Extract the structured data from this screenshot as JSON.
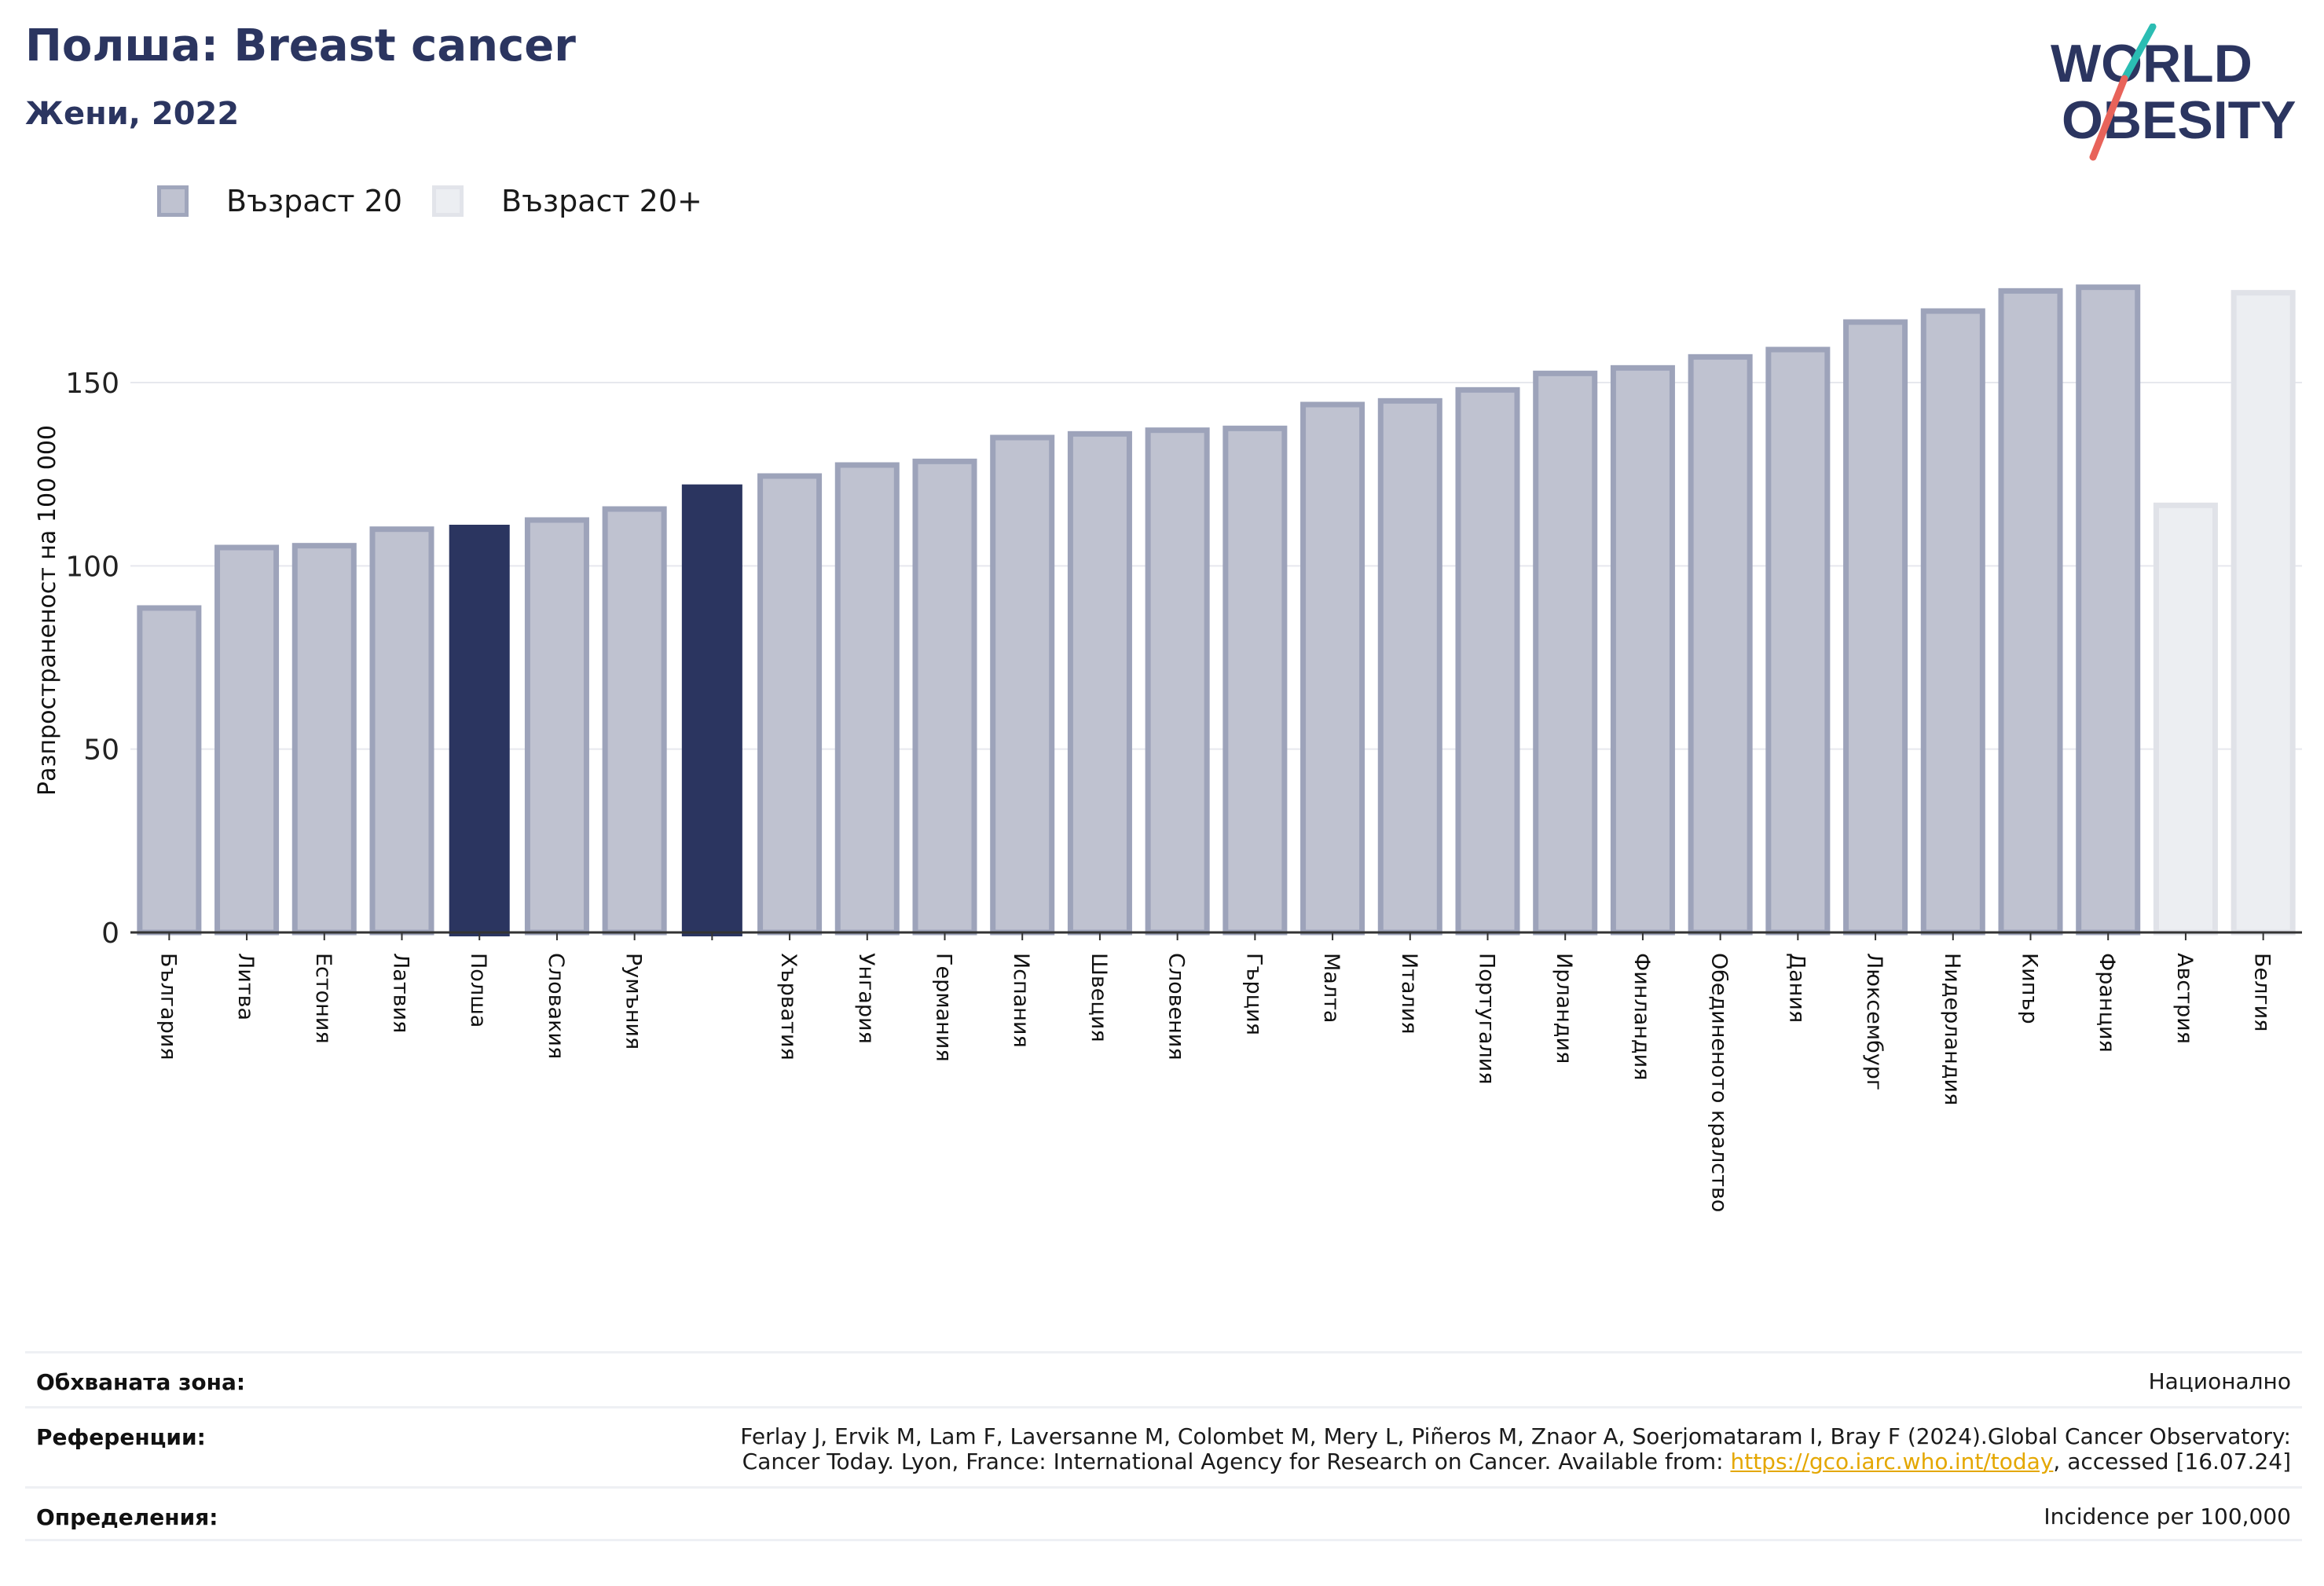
{
  "header": {
    "title": "Полша: Breast cancer",
    "subtitle": "Жени, 2022"
  },
  "logo": {
    "line1": "WORLD",
    "line2": "OBESITY"
  },
  "legend": [
    {
      "label": "Възраст 20",
      "fill": "#bfc2d0",
      "stroke": "#a0a6bc"
    },
    {
      "label": "Възраст 20+",
      "fill": "#eceef2",
      "stroke": "#e2e4ea"
    }
  ],
  "colors": {
    "highlight": "#2b3560",
    "bar_fill": "#bfc2d0",
    "bar_stroke": "#9da3ba",
    "bar_fill_light": "#eceef2",
    "bar_stroke_light": "#e0e2e8",
    "grid": "#e6e8ee",
    "axis": "#333333"
  },
  "chart_data": {
    "type": "bar",
    "ylabel": "Разпространеност  на 100 000",
    "ylim": [
      0,
      180
    ],
    "yticks": [
      0,
      50,
      100,
      150
    ],
    "grid": true,
    "categories": [
      "България",
      "Литва",
      "Естония",
      "Латвия",
      "Полша",
      "Словакия",
      "Румъния",
      "",
      "Хърватия",
      "Унгария",
      "Германия",
      "Испания",
      "Швеция",
      "Словения",
      "Гърция",
      "Малта",
      "Италия",
      "Португалия",
      "Ирландия",
      "Финландия",
      "Обединеното кралство",
      "Дания",
      "Люксембург",
      "Нидерландия",
      "Кипър",
      "Франция",
      "Австрия",
      "Белгия"
    ],
    "values": [
      88.5,
      105,
      105.5,
      110,
      111,
      112.5,
      115.5,
      122,
      124.5,
      127.5,
      128.5,
      135,
      136,
      137,
      137.5,
      144,
      145,
      148,
      152.5,
      154,
      157,
      159,
      166.5,
      169.5,
      175,
      176,
      116.5,
      174.5
    ],
    "series_group": [
      "20",
      "20",
      "20",
      "20",
      "highlight",
      "20",
      "20",
      "highlight",
      "20",
      "20",
      "20",
      "20",
      "20",
      "20",
      "20",
      "20",
      "20",
      "20",
      "20",
      "20",
      "20",
      "20",
      "20",
      "20",
      "20",
      "20",
      "20+",
      "20+"
    ]
  },
  "info": {
    "coverage_label": "Обхваната зона:",
    "coverage_value": "Национално",
    "references_label": "Референции:",
    "references_line1": "Ferlay J, Ervik M, Lam F, Laversanne M, Colombet M, Mery L, Piñeros M, Znaor A, Soerjomataram I, Bray F (2024).Global Cancer Observatory:",
    "references_line2_pre": "Cancer Today. Lyon, France: International Agency for Research on Cancer. Available from: ",
    "references_link": "https://gco.iarc.who.int/today",
    "references_line2_post": ", accessed [16.07.24]",
    "definitions_label": "Определения:",
    "definitions_value": "Incidence per 100,000"
  }
}
